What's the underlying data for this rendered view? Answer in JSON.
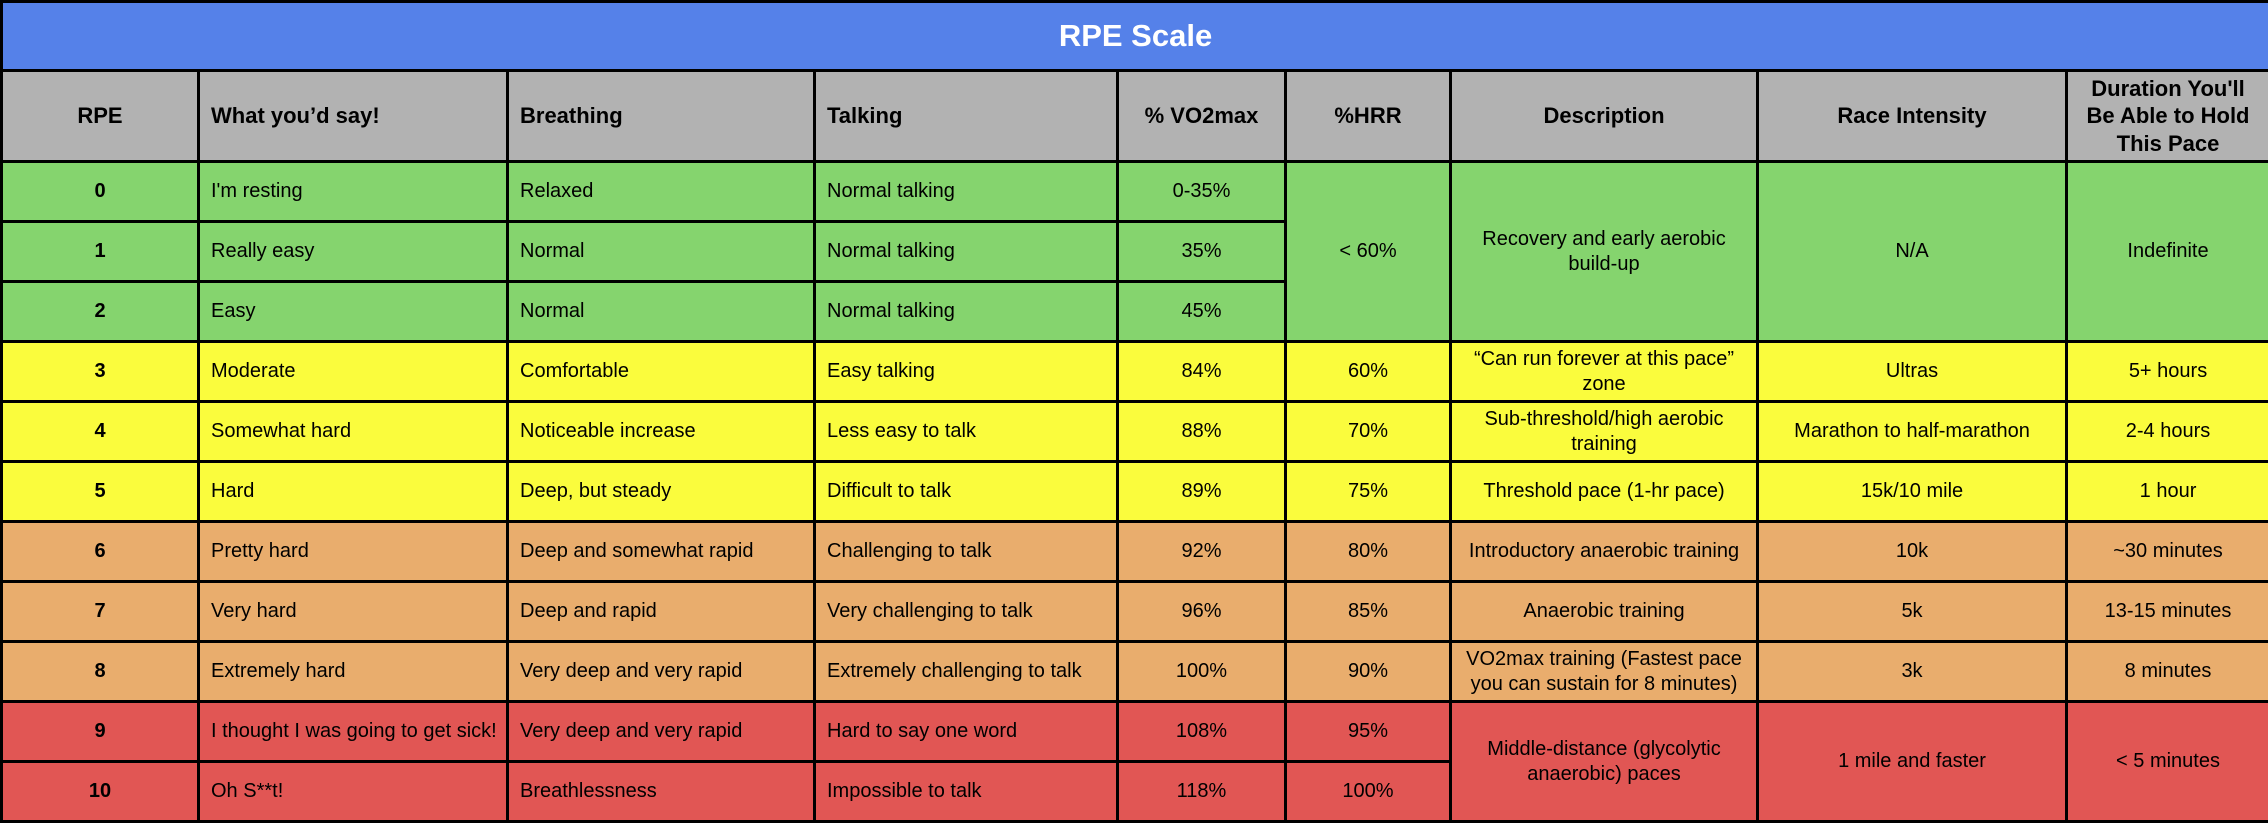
{
  "title": "RPE Scale",
  "colors": {
    "title_bar": "#5581E9",
    "title_text": "#FFFFFF",
    "header_bg": "#B2B2B2",
    "zone_green": "#85D46E",
    "zone_yellow": "#FAFC3D",
    "zone_orange": "#E9AD6D",
    "zone_red": "#E15654",
    "grid_border": "#000000",
    "cell_text": "#000000"
  },
  "columns": [
    {
      "key": "rpe",
      "label": "RPE"
    },
    {
      "key": "what-youd-say",
      "label": "What you’d say!"
    },
    {
      "key": "breathing",
      "label": "Breathing"
    },
    {
      "key": "talking",
      "label": "Talking"
    },
    {
      "key": "vo2max",
      "label": "% VO2max"
    },
    {
      "key": "hrr",
      "label": "%HRR"
    },
    {
      "key": "description",
      "label": "Description"
    },
    {
      "key": "race-intensity",
      "label": "Race Intensity"
    },
    {
      "key": "duration",
      "label": "Duration You'll Be Able to Hold This Pace"
    }
  ],
  "rows": [
    {
      "zone": "green",
      "cells": [
        {
          "t": "0"
        },
        {
          "t": "I'm resting"
        },
        {
          "t": "Relaxed"
        },
        {
          "t": "Normal talking"
        },
        {
          "t": "0-35%"
        },
        {
          "t": "< 60%",
          "rowspan": 3
        },
        {
          "t": "Recovery and early aerobic build-up",
          "rowspan": 3
        },
        {
          "t": "N/A",
          "rowspan": 3
        },
        {
          "t": "Indefinite",
          "rowspan": 3
        }
      ]
    },
    {
      "zone": "green",
      "cells": [
        {
          "t": "1"
        },
        {
          "t": "Really easy"
        },
        {
          "t": "Normal"
        },
        {
          "t": "Normal talking"
        },
        {
          "t": "35%"
        }
      ]
    },
    {
      "zone": "green",
      "cells": [
        {
          "t": "2"
        },
        {
          "t": "Easy"
        },
        {
          "t": "Normal"
        },
        {
          "t": "Normal talking"
        },
        {
          "t": "45%"
        }
      ]
    },
    {
      "zone": "yellow",
      "cells": [
        {
          "t": "3"
        },
        {
          "t": "Moderate"
        },
        {
          "t": "Comfortable"
        },
        {
          "t": "Easy talking"
        },
        {
          "t": "84%"
        },
        {
          "t": "60%"
        },
        {
          "t": "“Can run forever at this pace” zone"
        },
        {
          "t": "Ultras"
        },
        {
          "t": "5+ hours"
        }
      ]
    },
    {
      "zone": "yellow",
      "cells": [
        {
          "t": "4"
        },
        {
          "t": "Somewhat hard"
        },
        {
          "t": "Noticeable increase"
        },
        {
          "t": "Less easy to talk"
        },
        {
          "t": "88%"
        },
        {
          "t": "70%"
        },
        {
          "t": "Sub-threshold/high aerobic training"
        },
        {
          "t": "Marathon to half-marathon"
        },
        {
          "t": "2-4 hours"
        }
      ]
    },
    {
      "zone": "yellow",
      "cells": [
        {
          "t": "5"
        },
        {
          "t": "Hard"
        },
        {
          "t": "Deep, but steady"
        },
        {
          "t": "Difficult to talk"
        },
        {
          "t": "89%"
        },
        {
          "t": "75%"
        },
        {
          "t": "Threshold pace (1-hr pace)"
        },
        {
          "t": "15k/10 mile"
        },
        {
          "t": "1 hour"
        }
      ]
    },
    {
      "zone": "orange",
      "cells": [
        {
          "t": "6"
        },
        {
          "t": "Pretty hard"
        },
        {
          "t": "Deep and somewhat rapid"
        },
        {
          "t": "Challenging to talk"
        },
        {
          "t": "92%"
        },
        {
          "t": "80%"
        },
        {
          "t": "Introductory anaerobic training"
        },
        {
          "t": "10k"
        },
        {
          "t": "~30 minutes"
        }
      ]
    },
    {
      "zone": "orange",
      "cells": [
        {
          "t": "7"
        },
        {
          "t": "Very hard"
        },
        {
          "t": "Deep and rapid"
        },
        {
          "t": "Very challenging to talk"
        },
        {
          "t": "96%"
        },
        {
          "t": "85%"
        },
        {
          "t": "Anaerobic training"
        },
        {
          "t": "5k"
        },
        {
          "t": "13-15 minutes"
        }
      ]
    },
    {
      "zone": "orange",
      "cells": [
        {
          "t": "8"
        },
        {
          "t": "Extremely hard"
        },
        {
          "t": "Very deep and very rapid"
        },
        {
          "t": "Extremely challenging to talk"
        },
        {
          "t": "100%"
        },
        {
          "t": "90%"
        },
        {
          "t": "VO2max training (Fastest pace you can sustain for 8 minutes)"
        },
        {
          "t": "3k"
        },
        {
          "t": "8 minutes"
        }
      ]
    },
    {
      "zone": "red",
      "cells": [
        {
          "t": "9"
        },
        {
          "t": "I thought I was going to get sick!"
        },
        {
          "t": "Very deep and very rapid"
        },
        {
          "t": "Hard to say one word"
        },
        {
          "t": "108%"
        },
        {
          "t": "95%"
        },
        {
          "t": "Middle-distance (glycolytic anaerobic) paces",
          "rowspan": 2
        },
        {
          "t": "1 mile and faster",
          "rowspan": 2
        },
        {
          "t": "< 5 minutes",
          "rowspan": 2
        }
      ]
    },
    {
      "zone": "red",
      "cells": [
        {
          "t": "10"
        },
        {
          "t": "Oh S**t!"
        },
        {
          "t": "Breathlessness"
        },
        {
          "t": "Impossible to talk"
        },
        {
          "t": "118%"
        },
        {
          "t": "100%"
        }
      ]
    }
  ]
}
